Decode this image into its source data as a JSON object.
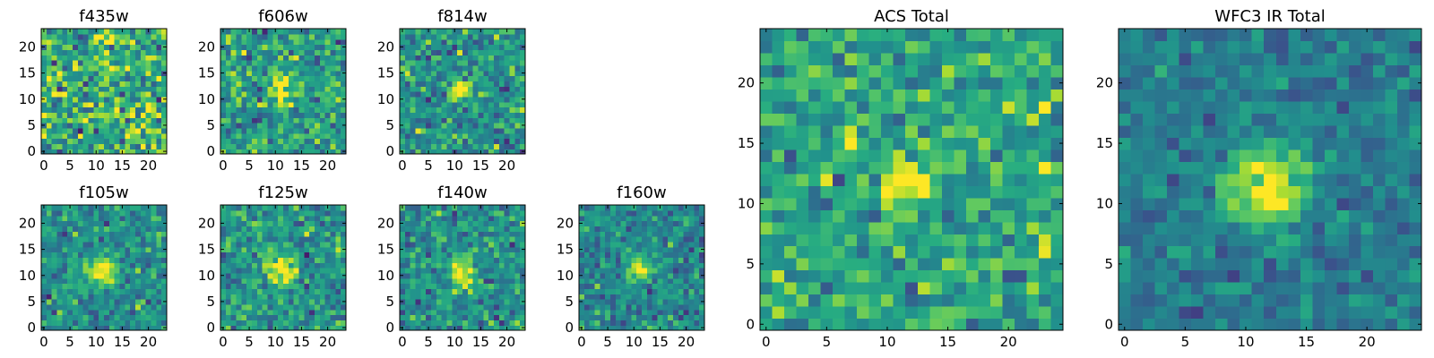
{
  "figure": {
    "title": ""
  },
  "colormap": {
    "name": "viridis",
    "low": "#440154",
    "mid": "#21908d",
    "high": "#fde725"
  },
  "chart_data": [
    {
      "type": "heatmap",
      "title": "f435w",
      "grid_size": [
        24,
        24
      ],
      "xlim": [
        0,
        24
      ],
      "ylim": [
        0,
        24
      ],
      "xticks": [
        0,
        5,
        10,
        15,
        20
      ],
      "yticks": [
        0,
        5,
        10,
        15,
        20
      ],
      "xlabel": "",
      "ylabel": "",
      "source": {
        "center": [
          12,
          12
        ],
        "peak": 0.0,
        "sigma": 2.0
      },
      "noise": 0.35,
      "base": 0.62,
      "seed": 11
    },
    {
      "type": "heatmap",
      "title": "f606w",
      "grid_size": [
        24,
        24
      ],
      "xlim": [
        0,
        24
      ],
      "ylim": [
        0,
        24
      ],
      "xticks": [
        0,
        5,
        10,
        15,
        20
      ],
      "yticks": [
        0,
        5,
        10,
        15,
        20
      ],
      "xlabel": "",
      "ylabel": "",
      "source": {
        "center": [
          11.5,
          12.5
        ],
        "peak": 0.45,
        "sigma": 1.6
      },
      "noise": 0.28,
      "base": 0.55,
      "seed": 23
    },
    {
      "type": "heatmap",
      "title": "f814w",
      "grid_size": [
        24,
        24
      ],
      "xlim": [
        0,
        24
      ],
      "ylim": [
        0,
        24
      ],
      "xticks": [
        0,
        5,
        10,
        15,
        20
      ],
      "yticks": [
        0,
        5,
        10,
        15,
        20
      ],
      "xlabel": "",
      "ylabel": "",
      "source": {
        "center": [
          11.5,
          12.5
        ],
        "peak": 0.55,
        "sigma": 1.3
      },
      "noise": 0.26,
      "base": 0.52,
      "seed": 37
    },
    {
      "type": "heatmap",
      "title": "f105w",
      "grid_size": [
        24,
        24
      ],
      "xlim": [
        0,
        24
      ],
      "ylim": [
        0,
        24
      ],
      "xticks": [
        0,
        5,
        10,
        15,
        20
      ],
      "yticks": [
        0,
        5,
        10,
        15,
        20
      ],
      "xlabel": "",
      "ylabel": "",
      "source": {
        "center": [
          11.5,
          11.5
        ],
        "peak": 0.55,
        "sigma": 2.0
      },
      "noise": 0.22,
      "base": 0.5,
      "seed": 41
    },
    {
      "type": "heatmap",
      "title": "f125w",
      "grid_size": [
        24,
        24
      ],
      "xlim": [
        0,
        24
      ],
      "ylim": [
        0,
        24
      ],
      "xticks": [
        0,
        5,
        10,
        15,
        20
      ],
      "yticks": [
        0,
        5,
        10,
        15,
        20
      ],
      "xlabel": "",
      "ylabel": "",
      "source": {
        "center": [
          11.5,
          11.5
        ],
        "peak": 0.5,
        "sigma": 2.0
      },
      "noise": 0.24,
      "base": 0.52,
      "seed": 53
    },
    {
      "type": "heatmap",
      "title": "f140w",
      "grid_size": [
        24,
        24
      ],
      "xlim": [
        0,
        24
      ],
      "ylim": [
        0,
        24
      ],
      "xticks": [
        0,
        5,
        10,
        15,
        20
      ],
      "yticks": [
        0,
        5,
        10,
        15,
        20
      ],
      "xlabel": "",
      "ylabel": "",
      "source": {
        "center": [
          12,
          11
        ],
        "peak": 0.5,
        "sigma": 2.0
      },
      "noise": 0.24,
      "base": 0.5,
      "seed": 67
    },
    {
      "type": "heatmap",
      "title": "f160w",
      "grid_size": [
        24,
        24
      ],
      "xlim": [
        0,
        24
      ],
      "ylim": [
        0,
        24
      ],
      "xticks": [
        0,
        5,
        10,
        15,
        20
      ],
      "yticks": [
        0,
        5,
        10,
        15,
        20
      ],
      "xlabel": "",
      "ylabel": "",
      "source": {
        "center": [
          11.5,
          11.5
        ],
        "peak": 0.55,
        "sigma": 1.6
      },
      "noise": 0.22,
      "base": 0.46,
      "seed": 79
    },
    {
      "type": "heatmap",
      "title": "ACS Total",
      "grid_size": [
        25,
        25
      ],
      "xlim": [
        0,
        25
      ],
      "ylim": [
        0,
        25
      ],
      "xticks": [
        0,
        5,
        10,
        15,
        20
      ],
      "yticks": [
        0,
        5,
        10,
        15,
        20
      ],
      "xlabel": "",
      "ylabel": "",
      "source": {
        "center": [
          12,
          12.5
        ],
        "peak": 0.55,
        "sigma": 1.5
      },
      "noise": 0.26,
      "base": 0.58,
      "seed": 97
    },
    {
      "type": "heatmap",
      "title": "WFC3 IR Total",
      "grid_size": [
        25,
        25
      ],
      "xlim": [
        0,
        25
      ],
      "ylim": [
        0,
        25
      ],
      "xticks": [
        0,
        5,
        10,
        15,
        20
      ],
      "yticks": [
        0,
        5,
        10,
        15,
        20
      ],
      "xlabel": "",
      "ylabel": "",
      "source": {
        "center": [
          12,
          12
        ],
        "peak": 0.65,
        "sigma": 2.2
      },
      "noise": 0.16,
      "base": 0.42,
      "seed": 113
    }
  ]
}
